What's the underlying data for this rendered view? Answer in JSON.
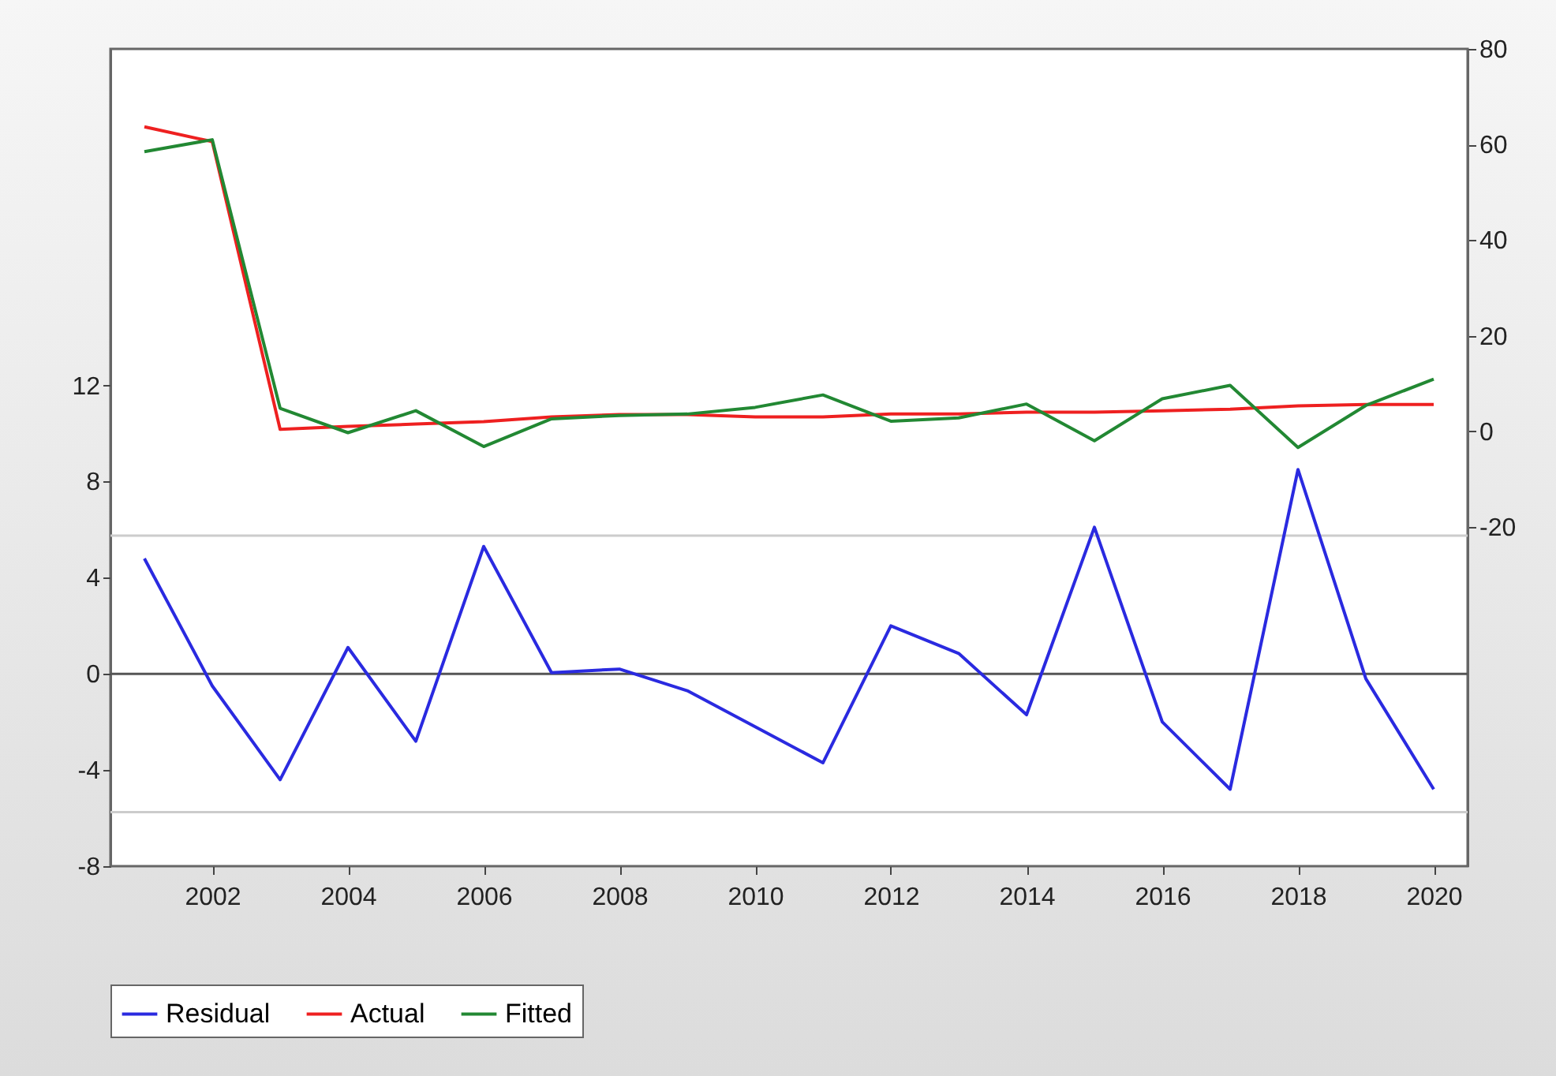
{
  "chart_data": {
    "type": "line",
    "x": [
      2001,
      2002,
      2003,
      2004,
      2005,
      2006,
      2007,
      2008,
      2009,
      2010,
      2011,
      2012,
      2013,
      2014,
      2015,
      2016,
      2017,
      2018,
      2019,
      2020
    ],
    "series": [
      {
        "name": "Residual",
        "color": "#2a2ae0",
        "values": [
          4.8,
          -0.5,
          -4.4,
          1.1,
          -2.8,
          5.3,
          0.05,
          0.2,
          -0.7,
          -2.2,
          -3.7,
          2.0,
          0.85,
          -1.7,
          6.1,
          -2.0,
          -4.8,
          8.5,
          -0.2,
          -4.8
        ]
      },
      {
        "name": "Actual",
        "color": "#ee2020",
        "axis": "y2",
        "values": [
          63.7,
          60.6,
          0.4,
          1.0,
          1.5,
          2.0,
          3.0,
          3.5,
          3.5,
          3.0,
          3.0,
          3.6,
          3.6,
          4.0,
          4.0,
          4.3,
          4.6,
          5.3,
          5.6,
          5.6
        ]
      },
      {
        "name": "Fitted",
        "color": "#228833",
        "axis": "y2",
        "values": [
          58.5,
          61.0,
          4.8,
          -0.3,
          4.3,
          -3.2,
          2.6,
          3.3,
          3.6,
          5.0,
          7.6,
          2.1,
          2.8,
          5.7,
          -2.0,
          6.8,
          9.6,
          -3.4,
          5.4,
          10.9
        ]
      }
    ],
    "xlim": [
      2000.5,
      2020.5
    ],
    "xticks": [
      2002,
      2004,
      2006,
      2008,
      2010,
      2012,
      2014,
      2016,
      2018,
      2020
    ],
    "ylim": [
      -8,
      26
    ],
    "yticks": [
      -8,
      -4,
      0,
      4,
      8,
      12
    ],
    "y2lim": [
      -91,
      80
    ],
    "y2ticks": [
      -20,
      0,
      20,
      40,
      60,
      80
    ],
    "ref_lines": [
      {
        "axis": "y",
        "value": 0,
        "color": "#555555"
      },
      {
        "axis": "y",
        "value": 5.75,
        "color": "#cccccc"
      },
      {
        "axis": "y",
        "value": -5.75,
        "color": "#cccccc"
      }
    ],
    "legend": "bottom",
    "grid": false,
    "line_style": "solid",
    "marker": "none"
  }
}
